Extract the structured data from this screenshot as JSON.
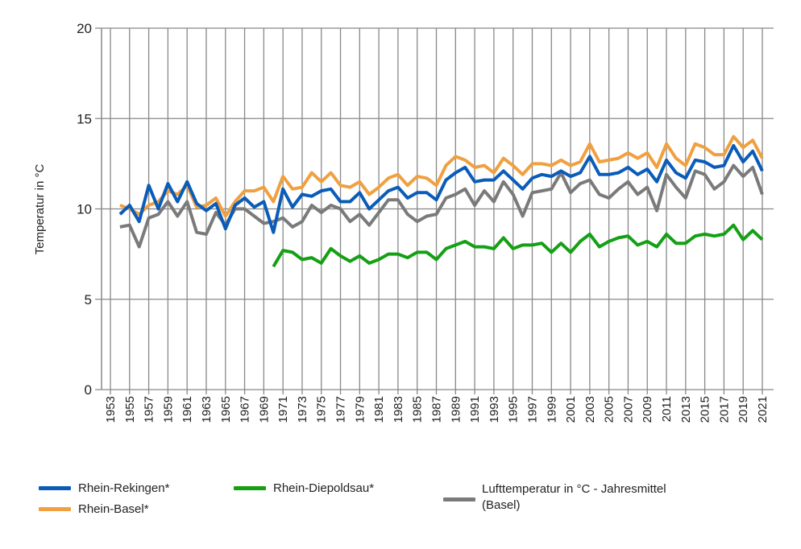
{
  "chart_data": {
    "type": "line",
    "title": "",
    "xlabel": "",
    "ylabel": "Temperatur  in °C",
    "ylim": [
      0,
      20
    ],
    "yticks": [
      0,
      5,
      10,
      15,
      20
    ],
    "xlim": [
      1953,
      2021
    ],
    "xticks": [
      "1953",
      "1955",
      "1957",
      "1959",
      "1961",
      "1963",
      "1965",
      "1967",
      "1969",
      "1971",
      "1973",
      "1975",
      "1977",
      "1979",
      "1981",
      "1983",
      "1985",
      "1987",
      "1989",
      "1991",
      "1993",
      "1995",
      "1997",
      "1999",
      "2001",
      "2003",
      "2005",
      "2007",
      "2009",
      "2011",
      "2013",
      "2015",
      "2017",
      "2019",
      "2021"
    ],
    "grid": {
      "horizontal": true,
      "vertical": true
    },
    "legend_position": "bottom",
    "series": [
      {
        "name": "Rhein-Rekingen*",
        "color": "#0a5cb8",
        "start_year": 1954,
        "values": [
          9.7,
          10.2,
          9.3,
          11.3,
          10.0,
          11.4,
          10.4,
          11.5,
          10.3,
          9.9,
          10.3,
          8.9,
          10.2,
          10.6,
          10.1,
          10.4,
          8.7,
          11.1,
          10.1,
          10.8,
          10.7,
          11.0,
          11.1,
          10.4,
          10.4,
          10.9,
          10.0,
          10.5,
          11.0,
          11.2,
          10.6,
          10.9,
          10.9,
          10.5,
          11.6,
          12.0,
          12.3,
          11.5,
          11.6,
          11.6,
          12.1,
          11.6,
          11.1,
          11.7,
          11.9,
          11.8,
          12.1,
          11.8,
          12.0,
          12.9,
          11.9,
          11.9,
          12.0,
          12.3,
          11.9,
          12.2,
          11.5,
          12.7,
          12.0,
          11.7,
          12.7,
          12.6,
          12.3,
          12.4,
          13.5,
          12.6,
          13.2,
          12.1
        ]
      },
      {
        "name": "Rhein-Basel*",
        "color": "#f0a040",
        "start_year": 1954,
        "values": [
          10.2,
          10.0,
          9.7,
          10.2,
          10.4,
          11.0,
          10.8,
          11.3,
          10.1,
          10.2,
          10.6,
          9.6,
          10.4,
          11.0,
          11.0,
          11.2,
          10.4,
          11.8,
          11.1,
          11.2,
          12.0,
          11.5,
          12.0,
          11.3,
          11.2,
          11.5,
          10.8,
          11.2,
          11.7,
          11.9,
          11.3,
          11.8,
          11.7,
          11.3,
          12.4,
          12.9,
          12.7,
          12.3,
          12.4,
          12.0,
          12.8,
          12.4,
          11.9,
          12.5,
          12.5,
          12.4,
          12.7,
          12.4,
          12.6,
          13.6,
          12.6,
          12.7,
          12.8,
          13.1,
          12.8,
          13.1,
          12.3,
          13.6,
          12.8,
          12.4,
          13.6,
          13.4,
          13.0,
          13.0,
          14.0,
          13.4,
          13.8,
          12.8
        ]
      },
      {
        "name": "Rhein-Diepoldsau*",
        "color": "#14a014",
        "start_year": 1970,
        "values": [
          6.8,
          7.7,
          7.6,
          7.2,
          7.3,
          7.0,
          7.8,
          7.4,
          7.1,
          7.4,
          7.0,
          7.2,
          7.5,
          7.5,
          7.3,
          7.6,
          7.6,
          7.2,
          7.8,
          8.0,
          8.2,
          7.9,
          7.9,
          7.8,
          8.4,
          7.8,
          8.0,
          8.0,
          8.1,
          7.6,
          8.1,
          7.6,
          8.2,
          8.6,
          7.9,
          8.2,
          8.4,
          8.5,
          8.0,
          8.2,
          7.9,
          8.6,
          8.1,
          8.1,
          8.5,
          8.6,
          8.5,
          8.6,
          9.1,
          8.3,
          8.8,
          8.3
        ]
      },
      {
        "name": "Lufttemperatur in °C - Jahresmittel (Basel)",
        "color": "#7a7a7a",
        "start_year": 1954,
        "values": [
          9.0,
          9.1,
          7.9,
          9.5,
          9.7,
          10.4,
          9.6,
          10.4,
          8.7,
          8.6,
          9.8,
          9.1,
          10.0,
          10.0,
          9.6,
          9.2,
          9.3,
          9.5,
          9.0,
          9.3,
          10.2,
          9.8,
          10.2,
          10.0,
          9.3,
          9.7,
          9.1,
          9.8,
          10.5,
          10.5,
          9.7,
          9.3,
          9.6,
          9.7,
          10.6,
          10.8,
          11.1,
          10.2,
          11.0,
          10.4,
          11.5,
          10.8,
          9.6,
          10.9,
          11.0,
          11.1,
          12.0,
          10.9,
          11.4,
          11.6,
          10.8,
          10.6,
          11.1,
          11.5,
          10.8,
          11.2,
          9.9,
          11.9,
          11.2,
          10.6,
          12.1,
          11.9,
          11.1,
          11.5,
          12.4,
          11.8,
          12.3,
          10.8
        ]
      }
    ]
  },
  "legend": {
    "rekingen": "Rhein-Rekingen*",
    "basel": "Rhein-Basel*",
    "diepoldsau": "Rhein-Diepoldsau*",
    "luft_line1": "Lufttemperatur in °C - Jahresmittel",
    "luft_line2": "(Basel)"
  }
}
